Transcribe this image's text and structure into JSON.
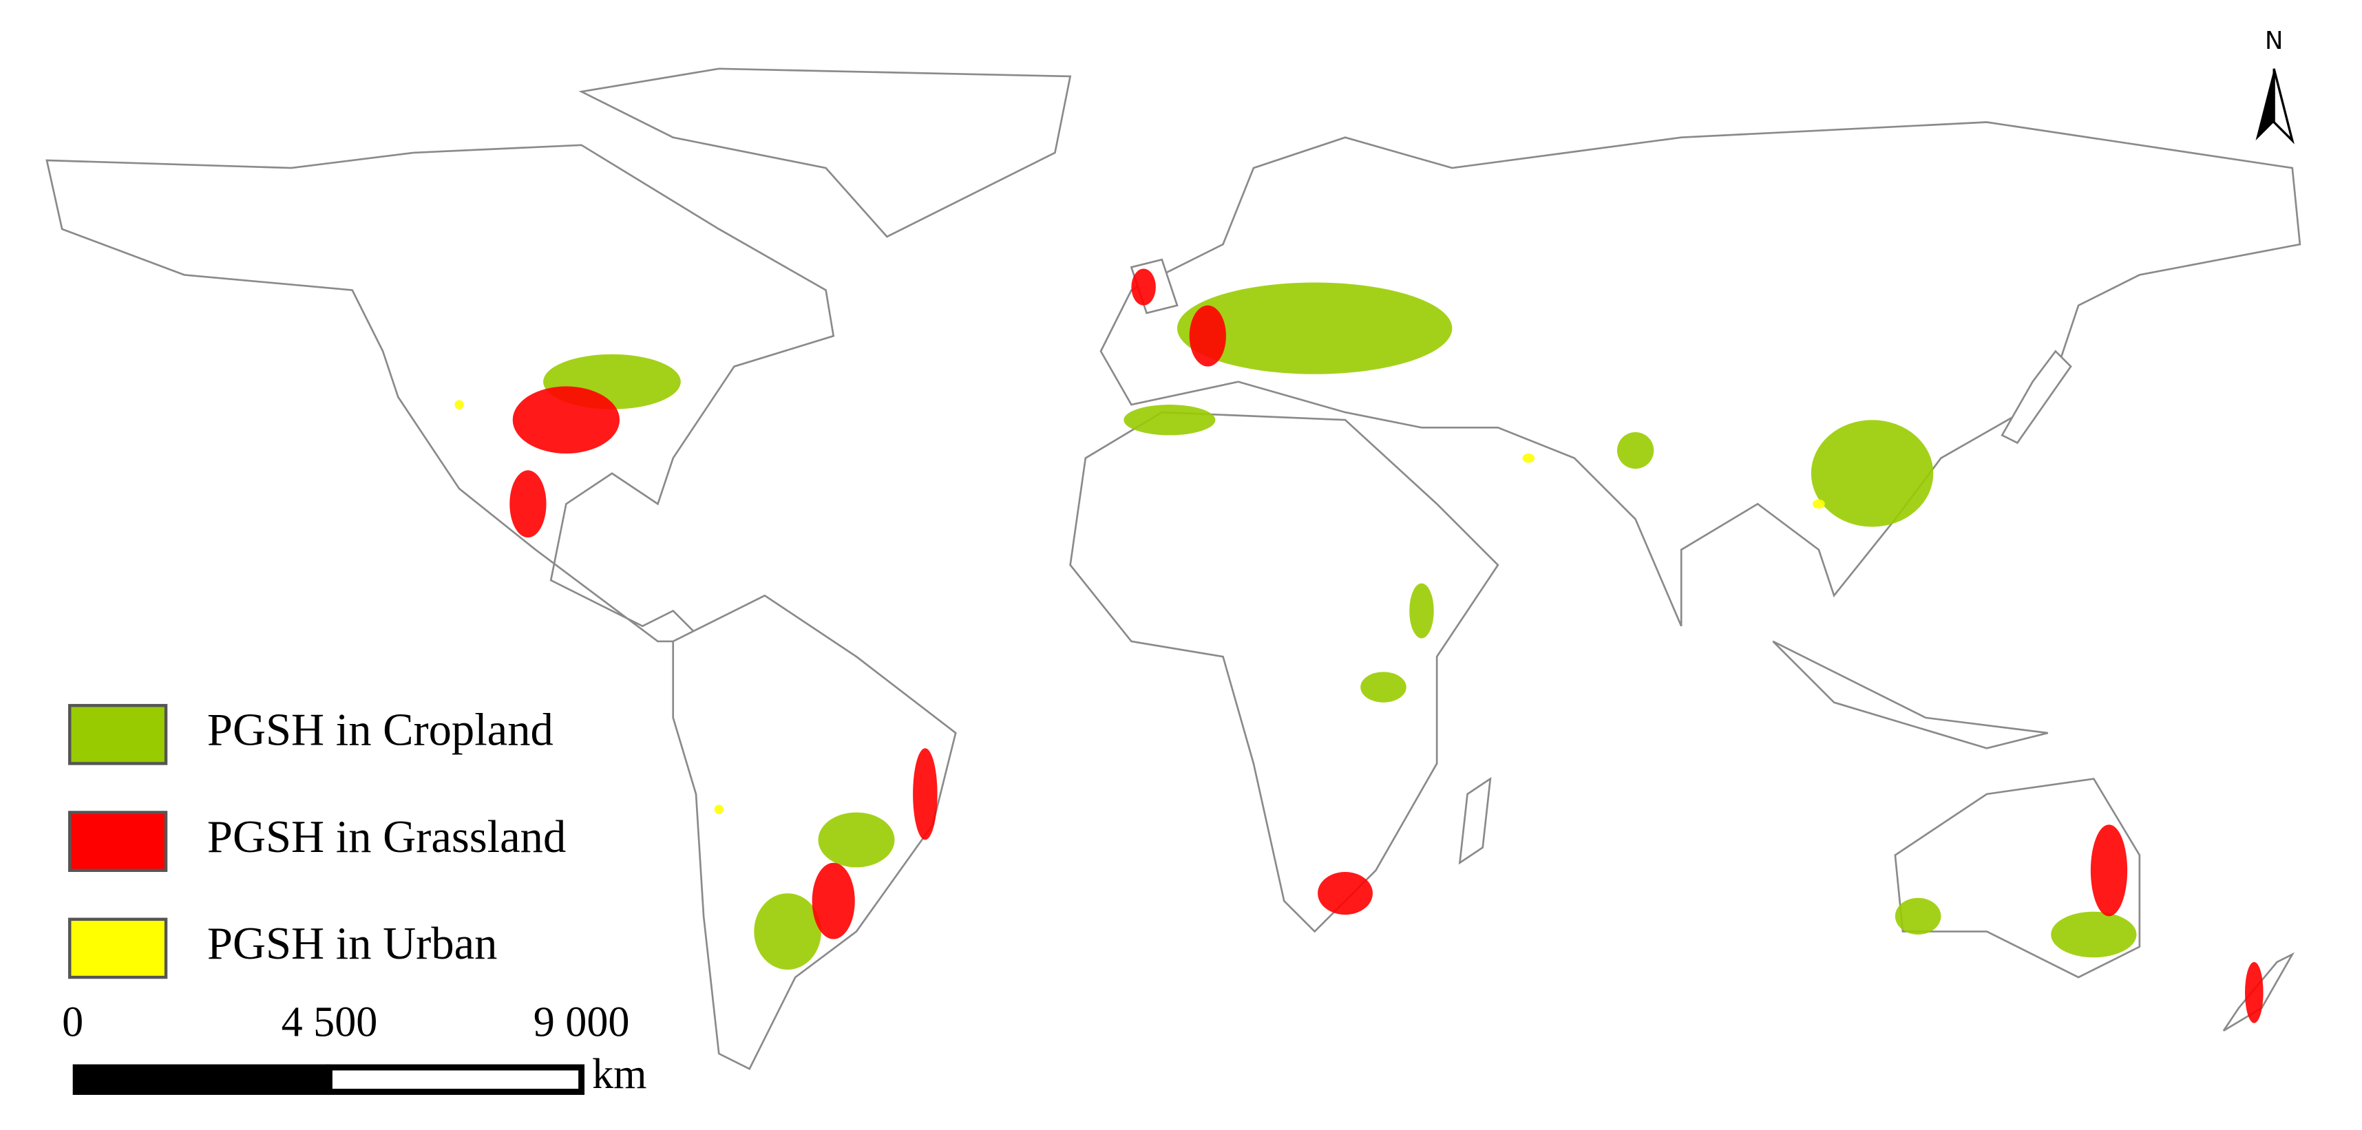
{
  "legend": {
    "items": [
      {
        "label": "PGSH in Cropland",
        "color": "#99cc00"
      },
      {
        "label": "PGSH in Grassland",
        "color": "#ff0000"
      },
      {
        "label": "PGSH in Urban",
        "color": "#ffff00"
      }
    ]
  },
  "scale_bar": {
    "labels": [
      "0",
      "4 500",
      "9 000"
    ],
    "unit": "km"
  },
  "north_arrow": {
    "label": "N"
  }
}
